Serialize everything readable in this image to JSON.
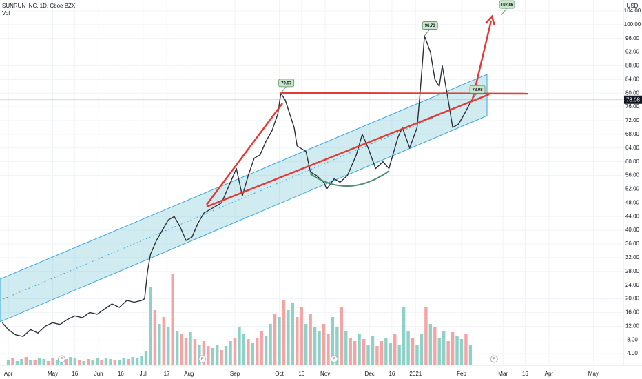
{
  "chart_data": {
    "type": "line",
    "title": "SUNRUN INC, 1D, Cboe BZX",
    "currency": "USD",
    "series": [
      {
        "color": "#2a2e39",
        "x": [
          -4,
          0,
          5,
          10,
          15,
          20,
          25,
          30,
          35,
          40,
          45,
          50,
          55,
          60,
          65,
          70,
          75,
          80,
          85,
          90,
          92,
          94,
          96,
          100,
          104,
          108,
          112,
          116,
          120,
          124,
          128,
          132,
          136,
          140,
          144,
          148,
          154,
          158,
          162,
          166,
          170,
          174,
          178,
          182,
          184,
          187,
          193,
          195,
          201,
          204,
          208,
          213,
          215,
          220,
          224,
          229,
          235,
          239,
          243,
          248,
          253,
          257,
          263,
          266,
          271,
          276,
          278,
          281,
          285,
          288,
          291,
          293,
          297,
          300,
          304,
          308,
          313
        ],
        "values": [
          13,
          11,
          9.5,
          9,
          11,
          10,
          12,
          13,
          12.5,
          14,
          15,
          14.5,
          16,
          15.5,
          17,
          18.5,
          17.5,
          19.5,
          19,
          19.5,
          20,
          28,
          33,
          37,
          40,
          43,
          44,
          41,
          37,
          38,
          42,
          45,
          46,
          47,
          48,
          52,
          58,
          50,
          56,
          61,
          62,
          66,
          69,
          74,
          79.97,
          78,
          70,
          64.6,
          63,
          57,
          56,
          54,
          52,
          55,
          54,
          56,
          62,
          68,
          64,
          58,
          60,
          58,
          67,
          70,
          64,
          70,
          80,
          96.73,
          92,
          84,
          82,
          88,
          78,
          70,
          71,
          74,
          78.08
        ]
      }
    ],
    "volume": {
      "name": "Vol",
      "up_color": "#8fd1c6",
      "down_color": "#f5a3a3",
      "x": [
        0,
        3,
        6,
        9,
        12,
        15,
        18,
        21,
        24,
        27,
        30,
        33,
        36,
        39,
        42,
        45,
        48,
        51,
        54,
        57,
        60,
        63,
        66,
        69,
        72,
        75,
        78,
        81,
        84,
        87,
        90,
        93,
        96,
        99,
        102,
        105,
        108,
        111,
        114,
        117,
        120,
        123,
        126,
        129,
        132,
        135,
        138,
        141,
        144,
        147,
        150,
        153,
        156,
        159,
        162,
        165,
        168,
        171,
        174,
        177,
        180,
        183,
        186,
        189,
        192,
        195,
        198,
        201,
        204,
        207,
        210,
        213,
        216,
        219,
        222,
        225,
        228,
        231,
        234,
        237,
        240,
        243,
        246,
        249,
        252,
        255,
        258,
        261,
        264,
        267,
        270,
        273,
        276,
        279,
        282,
        285,
        288,
        291,
        294,
        297,
        300,
        303,
        306,
        309,
        312
      ],
      "values": [
        8,
        10,
        6,
        9,
        12,
        7,
        8,
        10,
        9,
        6,
        11,
        8,
        7,
        9,
        12,
        10,
        8,
        6,
        9,
        7,
        10,
        8,
        11,
        9,
        7,
        8,
        10,
        9,
        12,
        11,
        14,
        20,
        113,
        80,
        60,
        70,
        55,
        132,
        50,
        45,
        40,
        48,
        38,
        30,
        35,
        28,
        25,
        30,
        22,
        28,
        35,
        40,
        55,
        45,
        38,
        32,
        40,
        50,
        42,
        60,
        75,
        70,
        95,
        80,
        90,
        70,
        85,
        60,
        75,
        55,
        50,
        60,
        45,
        70,
        55,
        85,
        50,
        40,
        35,
        45,
        38,
        30,
        42,
        28,
        35,
        40,
        32,
        45,
        30,
        85,
        50,
        40,
        30,
        45,
        85,
        60,
        55,
        40,
        50,
        35,
        48,
        42,
        38,
        45,
        30
      ],
      "up": [
        true,
        false,
        true,
        true,
        false,
        true,
        false,
        true,
        true,
        false,
        false,
        true,
        true,
        false,
        true,
        true,
        false,
        true,
        false,
        true,
        true,
        false,
        true,
        true,
        false,
        true,
        true,
        false,
        true,
        true,
        true,
        true,
        true,
        false,
        true,
        false,
        true,
        false,
        true,
        false,
        false,
        true,
        false,
        true,
        false,
        false,
        true,
        true,
        false,
        true,
        true,
        false,
        true,
        true,
        false,
        true,
        false,
        false,
        true,
        true,
        false,
        true,
        false,
        true,
        true,
        false,
        false,
        true,
        false,
        true,
        true,
        false,
        false,
        true,
        true,
        false,
        true,
        false,
        false,
        true,
        false,
        true,
        true,
        false,
        false,
        true,
        true,
        false,
        true,
        true,
        true,
        false,
        true,
        true,
        false,
        true,
        false,
        true,
        true,
        false,
        false,
        true,
        true,
        false,
        true
      ]
    },
    "y2lim": [
      0,
      530
    ],
    "last_price": 78.08,
    "annotations": [
      {
        "x": 184,
        "value": 79.97
      },
      {
        "x": 281,
        "value": 96.73
      },
      {
        "x": 313,
        "value": 78.08
      },
      {
        "x": 333,
        "value": 102.86
      }
    ],
    "earnings": {
      "label": "E",
      "x": [
        36,
        131,
        220,
        328
      ]
    },
    "xlim": [
      -5.6,
      415.3
    ],
    "xticks": [
      {
        "value": 0,
        "label": "Apr"
      },
      {
        "value": 30,
        "label": "May"
      },
      {
        "value": 45,
        "label": "16"
      },
      {
        "value": 61,
        "label": "Jun"
      },
      {
        "value": 76,
        "label": "16"
      },
      {
        "value": 91,
        "label": "Jul"
      },
      {
        "value": 107,
        "label": "17"
      },
      {
        "value": 122,
        "label": "Aug"
      },
      {
        "value": 153,
        "label": "Sep"
      },
      {
        "value": 183,
        "label": "Oct"
      },
      {
        "value": 198,
        "label": "16"
      },
      {
        "value": 214,
        "label": "Nov"
      },
      {
        "value": 244,
        "label": "Dec"
      },
      {
        "value": 259,
        "label": "16"
      },
      {
        "value": 275,
        "label": "2021"
      },
      {
        "value": 306,
        "label": "Feb"
      },
      {
        "value": 334,
        "label": "Mar"
      },
      {
        "value": 349,
        "label": "16"
      },
      {
        "value": 365,
        "label": "Apr"
      },
      {
        "value": 395,
        "label": "May"
      }
    ],
    "ylim": [
      0.6,
      107.2
    ],
    "yticks": [
      {
        "value": 4,
        "label": "4.00"
      },
      {
        "value": 8,
        "label": "8.00"
      },
      {
        "value": 12,
        "label": "12.00"
      },
      {
        "value": 16,
        "label": "16.00"
      },
      {
        "value": 20,
        "label": "20.00"
      },
      {
        "value": 24,
        "label": "24.00"
      },
      {
        "value": 28,
        "label": "28.00"
      },
      {
        "value": 32,
        "label": "32.00"
      },
      {
        "value": 36,
        "label": "36.00"
      },
      {
        "value": 40,
        "label": "40.00"
      },
      {
        "value": 44,
        "label": "44.00"
      },
      {
        "value": 48,
        "label": "48.00"
      },
      {
        "value": 52,
        "label": "52.00"
      },
      {
        "value": 56,
        "label": "56.00"
      },
      {
        "value": 60,
        "label": "60.00"
      },
      {
        "value": 64,
        "label": "64.00"
      },
      {
        "value": 68,
        "label": "68.00"
      },
      {
        "value": 72,
        "label": "72.00"
      },
      {
        "value": 76,
        "label": "76.00"
      },
      {
        "value": 80,
        "label": "80.00"
      },
      {
        "value": 84,
        "label": "84.00"
      },
      {
        "value": 88,
        "label": "88.00"
      },
      {
        "value": 92,
        "label": "92.00"
      },
      {
        "value": 96,
        "label": "96.00"
      },
      {
        "value": 100,
        "label": "100.00"
      },
      {
        "value": 104,
        "label": "104.00"
      }
    ],
    "grid": true
  }
}
